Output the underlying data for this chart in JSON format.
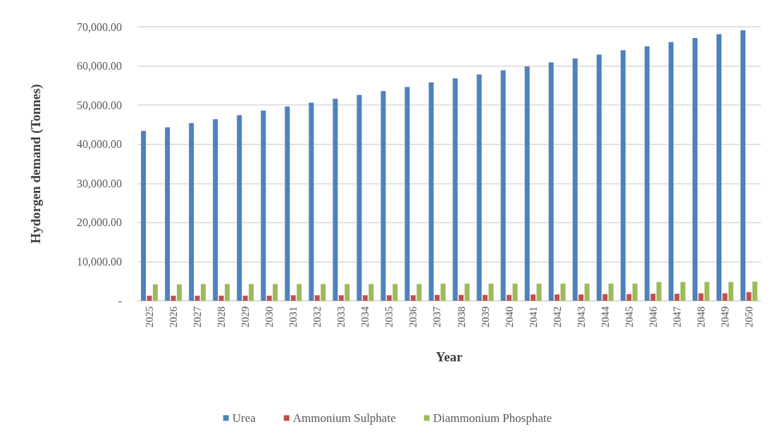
{
  "chart_data": {
    "type": "bar",
    "xlabel": "Year",
    "ylabel": "Hydorgen demand (Tonnes)",
    "categories": [
      "2025",
      "2026",
      "2027",
      "2028",
      "2029",
      "2030",
      "2031",
      "2032",
      "2033",
      "2034",
      "2035",
      "2036",
      "2037",
      "2038",
      "2039",
      "2040",
      "2041",
      "2042",
      "2043",
      "2044",
      "2045",
      "2046",
      "2047",
      "2048",
      "2049",
      "2050"
    ],
    "series": [
      {
        "name": "Urea",
        "color": "#4f81bd",
        "values": [
          43400,
          44300,
          45400,
          46400,
          47400,
          48600,
          49600,
          50600,
          51600,
          52600,
          53600,
          54600,
          55800,
          56800,
          57800,
          58900,
          59900,
          60900,
          61900,
          62900,
          64000,
          65000,
          66100,
          67100,
          68100,
          69100
        ]
      },
      {
        "name": "Ammonium Sulphate",
        "color": "#c0504d",
        "values": [
          1300,
          1300,
          1300,
          1300,
          1300,
          1300,
          1400,
          1400,
          1400,
          1400,
          1400,
          1400,
          1500,
          1500,
          1500,
          1500,
          1600,
          1600,
          1600,
          1700,
          1700,
          1800,
          1800,
          1900,
          1900,
          2200
        ]
      },
      {
        "name": "Diammonium Phosphate",
        "color": "#9bbb59",
        "values": [
          4200,
          4200,
          4300,
          4300,
          4300,
          4300,
          4300,
          4300,
          4300,
          4300,
          4300,
          4300,
          4400,
          4400,
          4400,
          4400,
          4400,
          4400,
          4400,
          4400,
          4400,
          4800,
          4800,
          4800,
          4800,
          4900
        ]
      }
    ],
    "ylim": [
      0,
      70000
    ],
    "yticks": [
      {
        "value": 0,
        "label": "-"
      },
      {
        "value": 10000,
        "label": "10,000.00"
      },
      {
        "value": 20000,
        "label": "20,000.00"
      },
      {
        "value": 30000,
        "label": "30,000.00"
      },
      {
        "value": 40000,
        "label": "40,000.00"
      },
      {
        "value": 50000,
        "label": "50,000.00"
      },
      {
        "value": 60000,
        "label": "60,000.00"
      },
      {
        "value": 70000,
        "label": "70,000.00"
      }
    ],
    "grid": "y",
    "legend": "bottom"
  }
}
